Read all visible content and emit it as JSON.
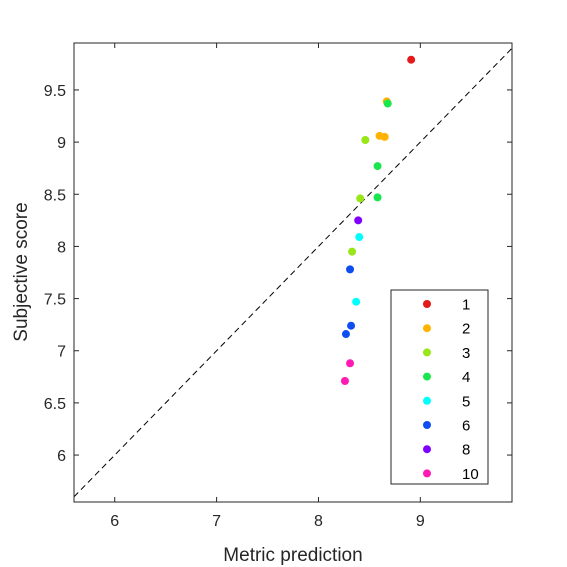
{
  "chart_data": {
    "type": "scatter",
    "xlabel": "Metric prediction",
    "ylabel": "Subjective score",
    "xlim": [
      5.6,
      9.9
    ],
    "ylim": [
      5.55,
      9.95
    ],
    "xticks": [
      6,
      7,
      8,
      9
    ],
    "yticks": [
      6,
      6.5,
      7,
      7.5,
      8,
      8.5,
      9,
      9.5
    ],
    "xtick_labels": [
      "6",
      "7",
      "8",
      "9"
    ],
    "ytick_labels": [
      "6",
      "6.5",
      "7",
      "7.5",
      "8",
      "8.5",
      "9",
      "9.5"
    ],
    "grid": false,
    "reference_line": "identity (dashed)",
    "legend_position": "bottom-right",
    "series": [
      {
        "name": "1",
        "color": "#e51a1a",
        "points": [
          [
            8.91,
            9.79
          ]
        ]
      },
      {
        "name": "2",
        "color": "#ffb300",
        "points": [
          [
            8.67,
            9.39
          ],
          [
            8.6,
            9.06
          ],
          [
            8.65,
            9.05
          ]
        ]
      },
      {
        "name": "3",
        "color": "#99e619",
        "points": [
          [
            8.46,
            9.02
          ],
          [
            8.41,
            8.46
          ],
          [
            8.33,
            7.95
          ]
        ]
      },
      {
        "name": "4",
        "color": "#19e64d",
        "points": [
          [
            8.68,
            9.37
          ],
          [
            8.58,
            8.77
          ],
          [
            8.58,
            8.47
          ]
        ]
      },
      {
        "name": "5",
        "color": "#00ffff",
        "points": [
          [
            8.4,
            8.09
          ],
          [
            8.37,
            7.47
          ]
        ]
      },
      {
        "name": "6",
        "color": "#0d4df2",
        "points": [
          [
            8.31,
            7.78
          ],
          [
            8.32,
            7.24
          ],
          [
            8.27,
            7.16
          ]
        ]
      },
      {
        "name": "8",
        "color": "#8000ff",
        "points": [
          [
            8.39,
            8.25
          ]
        ]
      },
      {
        "name": "10",
        "color": "#ff1ab3",
        "points": [
          [
            8.31,
            6.88
          ],
          [
            8.26,
            6.71
          ]
        ]
      }
    ]
  }
}
